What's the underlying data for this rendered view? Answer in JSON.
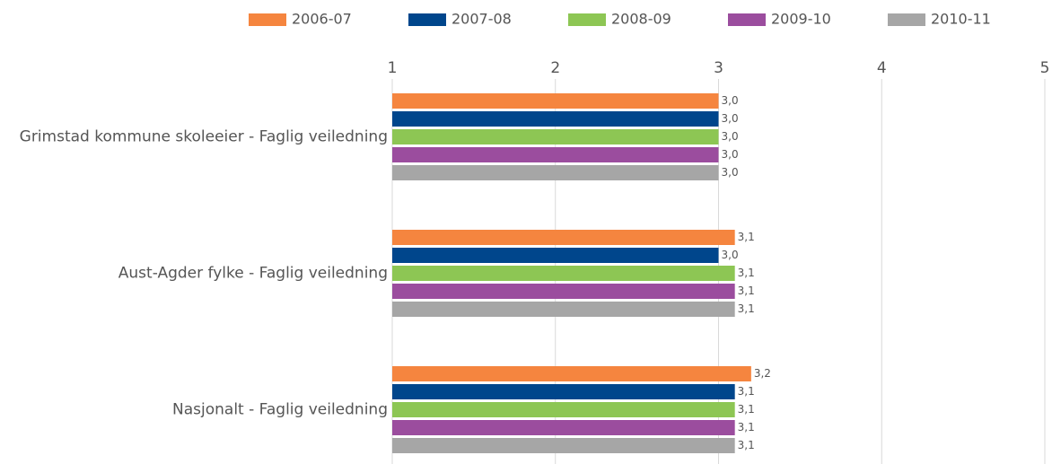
{
  "chart_data": {
    "type": "hbar",
    "categories": [
      "Grimstad kommune skoleeier - Faglig veiledning",
      "Aust-Agder fylke - Faglig veiledning",
      "Nasjonalt - Faglig veiledning"
    ],
    "series": [
      {
        "name": "2006-07",
        "color": "#f5853f",
        "values": [
          3.0,
          3.1,
          3.2
        ],
        "value_labels": [
          "3,0",
          "3,1",
          "3,2"
        ]
      },
      {
        "name": "2007-08",
        "color": "#00468c",
        "values": [
          3.0,
          3.0,
          3.1
        ],
        "value_labels": [
          "3,0",
          "3,0",
          "3,1"
        ]
      },
      {
        "name": "2008-09",
        "color": "#8dc654",
        "values": [
          3.0,
          3.1,
          3.1
        ],
        "value_labels": [
          "3,0",
          "3,1",
          "3,1"
        ]
      },
      {
        "name": "2009-10",
        "color": "#9b4d9e",
        "values": [
          3.0,
          3.1,
          3.1
        ],
        "value_labels": [
          "3,0",
          "3,1",
          "3,1"
        ]
      },
      {
        "name": "2010-11",
        "color": "#a6a6a6",
        "values": [
          3.0,
          3.1,
          3.1
        ],
        "value_labels": [
          "3,0",
          "3,1",
          "3,1"
        ]
      }
    ],
    "xlim": [
      1,
      5
    ],
    "xticks": [
      1,
      2,
      3,
      4,
      5
    ],
    "grid": true,
    "legend": "top"
  }
}
